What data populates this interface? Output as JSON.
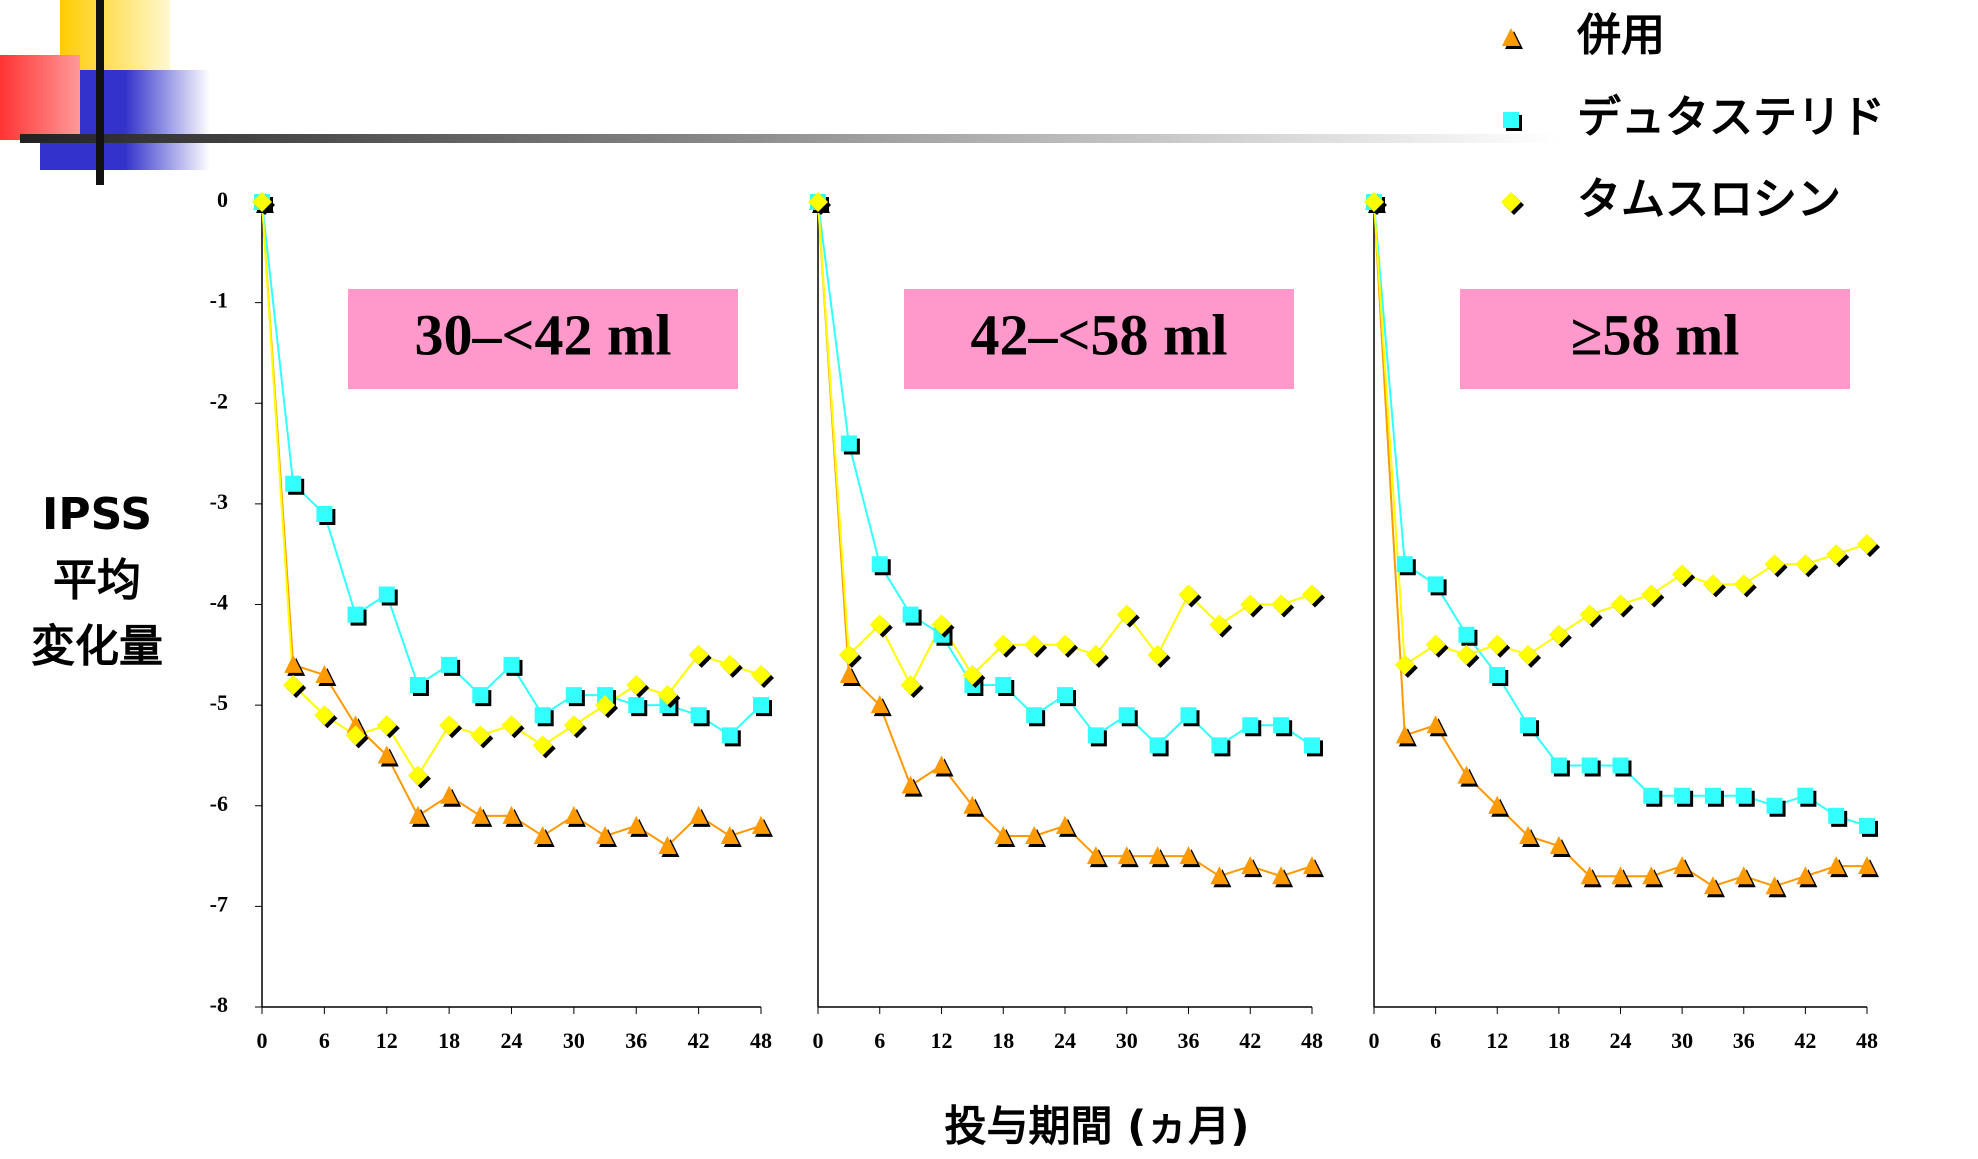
{
  "chart_data": {
    "type": "line",
    "ylabel": [
      "IPSS",
      "平均",
      "変化量"
    ],
    "xlabel": "投与期間 (ヵ月)",
    "x": [
      0,
      3,
      6,
      9,
      12,
      15,
      18,
      21,
      24,
      27,
      30,
      33,
      36,
      39,
      42,
      45,
      48
    ],
    "xlim": [
      0,
      48
    ],
    "xticks": [
      0,
      6,
      12,
      18,
      24,
      30,
      36,
      42,
      48
    ],
    "ylim": [
      -8,
      0
    ],
    "yticks": [
      0,
      -1,
      -2,
      -3,
      -4,
      -5,
      -6,
      -7,
      -8
    ],
    "series": [
      {
        "name": "併用",
        "color": "#ff9900",
        "marker": "triangle"
      },
      {
        "name": "デュタステリド",
        "color": "#33ffff",
        "marker": "square"
      },
      {
        "name": "タムスロシン",
        "color": "#ffff00",
        "marker": "diamond"
      }
    ],
    "panels": [
      {
        "title": "30–<42 ml",
        "series": [
          {
            "values": [
              0,
              -4.6,
              -4.7,
              -5.2,
              -5.5,
              -6.1,
              -5.9,
              -6.1,
              -6.1,
              -6.3,
              -6.1,
              -6.3,
              -6.2,
              -6.4,
              -6.1,
              -6.3,
              -6.2
            ]
          },
          {
            "values": [
              0,
              -2.8,
              -3.1,
              -4.1,
              -3.9,
              -4.8,
              -4.6,
              -4.9,
              -4.6,
              -5.1,
              -4.9,
              -4.9,
              -5.0,
              -5.0,
              -5.1,
              -5.3,
              -5.0
            ]
          },
          {
            "values": [
              0,
              -4.8,
              -5.1,
              -5.3,
              -5.2,
              -5.7,
              -5.2,
              -5.3,
              -5.2,
              -5.4,
              -5.2,
              -5.0,
              -4.8,
              -4.9,
              -4.5,
              -4.6,
              -4.7
            ]
          }
        ]
      },
      {
        "title": "42–<58 ml",
        "series": [
          {
            "values": [
              0,
              -4.7,
              -5.0,
              -5.8,
              -5.6,
              -6.0,
              -6.3,
              -6.3,
              -6.2,
              -6.5,
              -6.5,
              -6.5,
              -6.5,
              -6.7,
              -6.6,
              -6.7,
              -6.6
            ]
          },
          {
            "values": [
              0,
              -2.4,
              -3.6,
              -4.1,
              -4.3,
              -4.8,
              -4.8,
              -5.1,
              -4.9,
              -5.3,
              -5.1,
              -5.4,
              -5.1,
              -5.4,
              -5.2,
              -5.2,
              -5.4
            ]
          },
          {
            "values": [
              0,
              -4.5,
              -4.2,
              -4.8,
              -4.2,
              -4.7,
              -4.4,
              -4.4,
              -4.4,
              -4.5,
              -4.1,
              -4.5,
              -3.9,
              -4.2,
              -4.0,
              -4.0,
              -3.9
            ]
          }
        ]
      },
      {
        "title": "≥58 ml",
        "series": [
          {
            "values": [
              0,
              -5.3,
              -5.2,
              -5.7,
              -6.0,
              -6.3,
              -6.4,
              -6.7,
              -6.7,
              -6.7,
              -6.6,
              -6.8,
              -6.7,
              -6.8,
              -6.7,
              -6.6,
              -6.6
            ]
          },
          {
            "values": [
              0,
              -3.6,
              -3.8,
              -4.3,
              -4.7,
              -5.2,
              -5.6,
              -5.6,
              -5.6,
              -5.9,
              -5.9,
              -5.9,
              -5.9,
              -6.0,
              -5.9,
              -6.1,
              -6.2
            ]
          },
          {
            "values": [
              0,
              -4.6,
              -4.4,
              -4.5,
              -4.4,
              -4.5,
              -4.3,
              -4.1,
              -4.0,
              -3.9,
              -3.7,
              -3.8,
              -3.8,
              -3.6,
              -3.6,
              -3.5,
              -3.4
            ]
          }
        ]
      }
    ]
  }
}
